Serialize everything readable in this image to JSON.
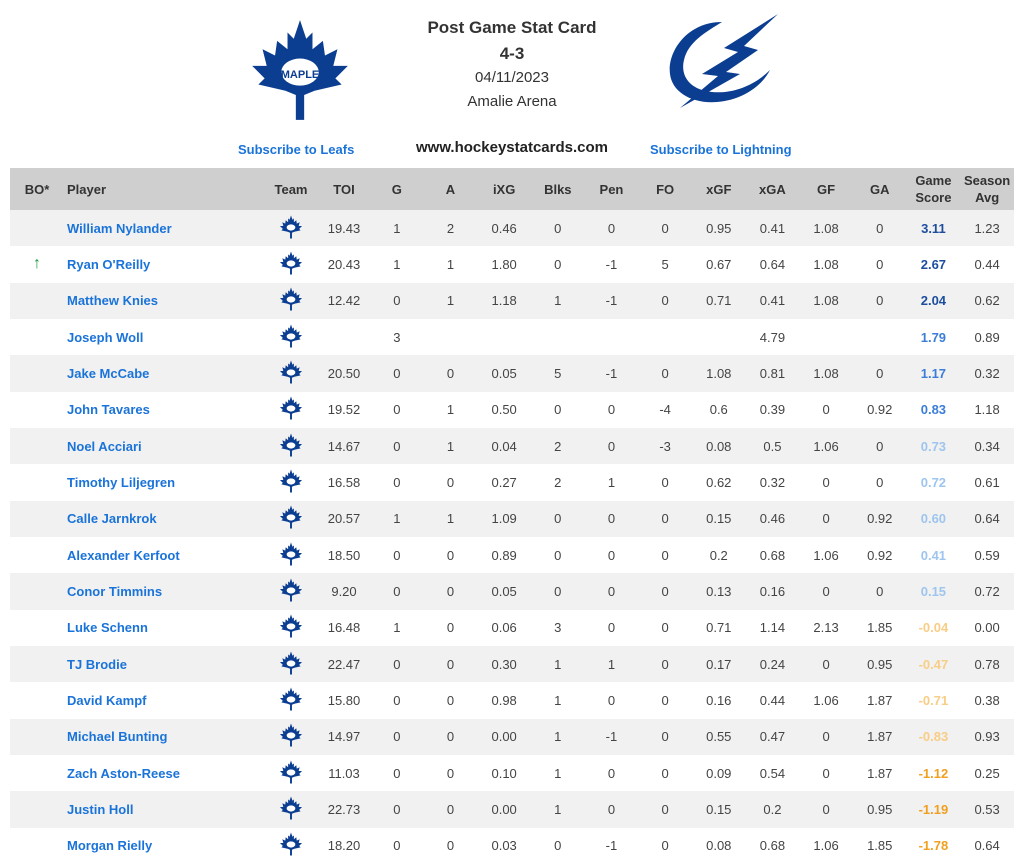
{
  "header": {
    "title": "Post Game Stat Card",
    "score": "4-3",
    "date": "04/11/2023",
    "venue": "Amalie Arena",
    "subscribe_home": "Subscribe to Leafs",
    "website": "www.hockeystatcards.com",
    "subscribe_away": "Subscribe to Lightning"
  },
  "table": {
    "columns": [
      "BO*",
      "Player",
      "Team",
      "TOI",
      "G",
      "A",
      "iXG",
      "Blks",
      "Pen",
      "FO",
      "xGF",
      "xGA",
      "GF",
      "GA",
      "Game Score",
      "Season Avg"
    ],
    "rows": [
      {
        "player": "William Nylander",
        "stats": [
          "19.43",
          "1",
          "2",
          "0.46",
          "0",
          "0",
          "0",
          "0.95",
          "0.41",
          "1.08",
          "0",
          "3.11",
          "1.23"
        ],
        "score_color": "#1d4e9e"
      },
      {
        "bo": "↑",
        "player": "Ryan O'Reilly",
        "stats": [
          "20.43",
          "1",
          "1",
          "1.80",
          "0",
          "-1",
          "5",
          "0.67",
          "0.64",
          "1.08",
          "0",
          "2.67",
          "0.44"
        ],
        "score_color": "#1d4e9e"
      },
      {
        "player": "Matthew Knies",
        "stats": [
          "12.42",
          "0",
          "1",
          "1.18",
          "1",
          "-1",
          "0",
          "0.71",
          "0.41",
          "1.08",
          "0",
          "2.04",
          "0.62"
        ],
        "score_color": "#1d4e9e"
      },
      {
        "player": "Joseph Woll",
        "stats": [
          null,
          "3",
          null,
          null,
          null,
          null,
          null,
          null,
          "4.79",
          null,
          null,
          "1.79",
          "0.89"
        ],
        "score_color": "#3b7dd8"
      },
      {
        "player": "Jake McCabe",
        "stats": [
          "20.50",
          "0",
          "0",
          "0.05",
          "5",
          "-1",
          "0",
          "1.08",
          "0.81",
          "1.08",
          "0",
          "1.17",
          "0.32"
        ],
        "score_color": "#3b7dd8"
      },
      {
        "player": "John Tavares",
        "stats": [
          "19.52",
          "0",
          "1",
          "0.50",
          "0",
          "0",
          "-4",
          "0.6",
          "0.39",
          "0",
          "0.92",
          "0.83",
          "1.18"
        ],
        "score_color": "#3b7dd8"
      },
      {
        "player": "Noel Acciari",
        "stats": [
          "14.67",
          "0",
          "1",
          "0.04",
          "2",
          "0",
          "-3",
          "0.08",
          "0.5",
          "1.06",
          "0",
          "0.73",
          "0.34"
        ],
        "score_color": "#9ec5ee"
      },
      {
        "player": "Timothy Liljegren",
        "stats": [
          "16.58",
          "0",
          "0",
          "0.27",
          "2",
          "1",
          "0",
          "0.62",
          "0.32",
          "0",
          "0",
          "0.72",
          "0.61"
        ],
        "score_color": "#9ec5ee"
      },
      {
        "player": "Calle Jarnkrok",
        "stats": [
          "20.57",
          "1",
          "1",
          "1.09",
          "0",
          "0",
          "0",
          "0.15",
          "0.46",
          "0",
          "0.92",
          "0.60",
          "0.64"
        ],
        "score_color": "#9ec5ee"
      },
      {
        "player": "Alexander Kerfoot",
        "stats": [
          "18.50",
          "0",
          "0",
          "0.89",
          "0",
          "0",
          "0",
          "0.2",
          "0.68",
          "1.06",
          "0.92",
          "0.41",
          "0.59"
        ],
        "score_color": "#9ec5ee"
      },
      {
        "player": "Conor Timmins",
        "stats": [
          "9.20",
          "0",
          "0",
          "0.05",
          "0",
          "0",
          "0",
          "0.13",
          "0.16",
          "0",
          "0",
          "0.15",
          "0.72"
        ],
        "score_color": "#9ec5ee"
      },
      {
        "player": "Luke Schenn",
        "stats": [
          "16.48",
          "1",
          "0",
          "0.06",
          "3",
          "0",
          "0",
          "0.71",
          "1.14",
          "2.13",
          "1.85",
          "-0.04",
          "0.00"
        ],
        "score_color": "#f8cd85"
      },
      {
        "player": "TJ Brodie",
        "stats": [
          "22.47",
          "0",
          "0",
          "0.30",
          "1",
          "1",
          "0",
          "0.17",
          "0.24",
          "0",
          "0.95",
          "-0.47",
          "0.78"
        ],
        "score_color": "#f8cd85"
      },
      {
        "player": "David Kampf",
        "stats": [
          "15.80",
          "0",
          "0",
          "0.98",
          "1",
          "0",
          "0",
          "0.16",
          "0.44",
          "1.06",
          "1.87",
          "-0.71",
          "0.38"
        ],
        "score_color": "#f8cd85"
      },
      {
        "player": "Michael Bunting",
        "stats": [
          "14.97",
          "0",
          "0",
          "0.00",
          "1",
          "-1",
          "0",
          "0.55",
          "0.47",
          "0",
          "1.87",
          "-0.83",
          "0.93"
        ],
        "score_color": "#f8cd85"
      },
      {
        "player": "Zach Aston-Reese",
        "stats": [
          "11.03",
          "0",
          "0",
          "0.10",
          "1",
          "0",
          "0",
          "0.09",
          "0.54",
          "0",
          "1.87",
          "-1.12",
          "0.25"
        ],
        "score_color": "#f0a020"
      },
      {
        "player": "Justin Holl",
        "stats": [
          "22.73",
          "0",
          "0",
          "0.00",
          "1",
          "0",
          "0",
          "0.15",
          "0.2",
          "0",
          "0.95",
          "-1.19",
          "0.53"
        ],
        "score_color": "#f0a020"
      },
      {
        "player": "Morgan Rielly",
        "stats": [
          "18.20",
          "0",
          "0",
          "0.03",
          "0",
          "-1",
          "0",
          "0.08",
          "0.68",
          "1.06",
          "1.85",
          "-1.78",
          "0.64"
        ],
        "score_color": "#f0a020"
      }
    ]
  }
}
